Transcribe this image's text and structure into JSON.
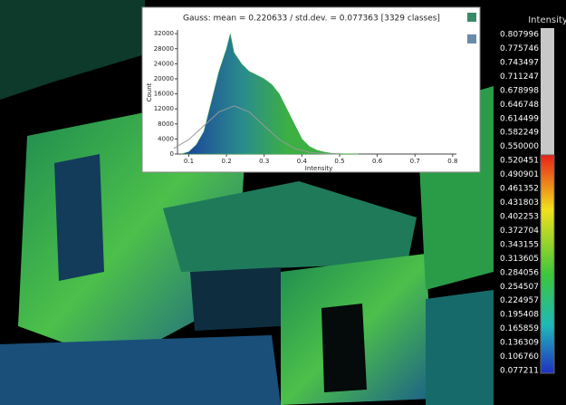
{
  "chart_data": {
    "type": "area",
    "title": "Gauss: mean = 0.220633 / std.dev. = 0.077363 [3329 classes]",
    "x_label": "Intensity",
    "y_label": "Count",
    "xlim": [
      0.07,
      0.81
    ],
    "ylim": [
      0,
      33000
    ],
    "xticks": [
      0.1,
      0.2,
      0.3,
      0.4,
      0.5,
      0.6,
      0.7,
      0.8
    ],
    "yticks": [
      0,
      4000,
      8000,
      12000,
      16000,
      20000,
      24000,
      28000,
      32000
    ],
    "series": [
      {
        "kind": "area",
        "color": "#3cb043",
        "x": [
          0.08,
          0.1,
          0.12,
          0.14,
          0.16,
          0.18,
          0.2,
          0.21,
          0.22,
          0.24,
          0.26,
          0.28,
          0.3,
          0.32,
          0.34,
          0.36,
          0.38,
          0.4,
          0.42,
          0.44,
          0.46,
          0.48,
          0.5,
          0.55
        ],
        "values": [
          0,
          600,
          2500,
          6000,
          14000,
          22000,
          28000,
          32000,
          27000,
          24000,
          22000,
          21000,
          20000,
          18500,
          16000,
          12000,
          8000,
          4000,
          2000,
          1000,
          500,
          200,
          100,
          0
        ]
      },
      {
        "kind": "line",
        "color": "#999999",
        "x": [
          0.06,
          0.1,
          0.14,
          0.18,
          0.22,
          0.26,
          0.3,
          0.34,
          0.38,
          0.42,
          0.46,
          0.5
        ],
        "values": [
          1500,
          3850,
          7500,
          11200,
          12800,
          11200,
          7500,
          3850,
          1500,
          450,
          100,
          20
        ]
      }
    ]
  },
  "color_scale": {
    "title": "Intensity",
    "labels": [
      "0.807996",
      "0.775746",
      "0.743497",
      "0.711247",
      "0.678998",
      "0.646748",
      "0.614499",
      "0.582249",
      "0.550000",
      "0.520451",
      "0.490901",
      "0.461352",
      "0.431803",
      "0.402253",
      "0.372704",
      "0.343155",
      "0.313605",
      "0.284056",
      "0.254507",
      "0.224957",
      "0.195408",
      "0.165859",
      "0.136309",
      "0.106760",
      "0.077211"
    ]
  }
}
